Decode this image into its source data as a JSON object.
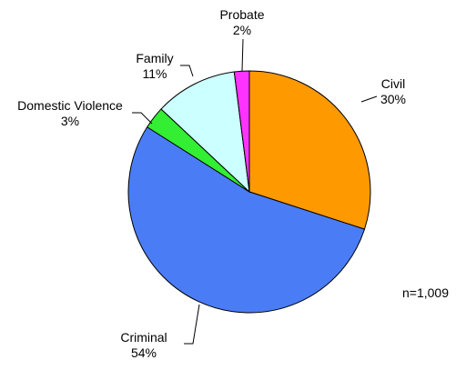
{
  "chart_data": {
    "type": "pie",
    "title": "",
    "slices": [
      {
        "label": "Civil",
        "value": 30,
        "display": "30%",
        "color": "#ff9900"
      },
      {
        "label": "Criminal",
        "value": 54,
        "display": "54%",
        "color": "#4a7df5"
      },
      {
        "label": "Domestic Violence",
        "value": 3,
        "display": "3%",
        "color": "#33ee33"
      },
      {
        "label": "Family",
        "value": 11,
        "display": "11%",
        "color": "#ccffff"
      },
      {
        "label": "Probate",
        "value": 2,
        "display": "2%",
        "color": "#ff33ff"
      }
    ],
    "legend": "none"
  },
  "annotation": {
    "sample_size": "n=1,009"
  }
}
